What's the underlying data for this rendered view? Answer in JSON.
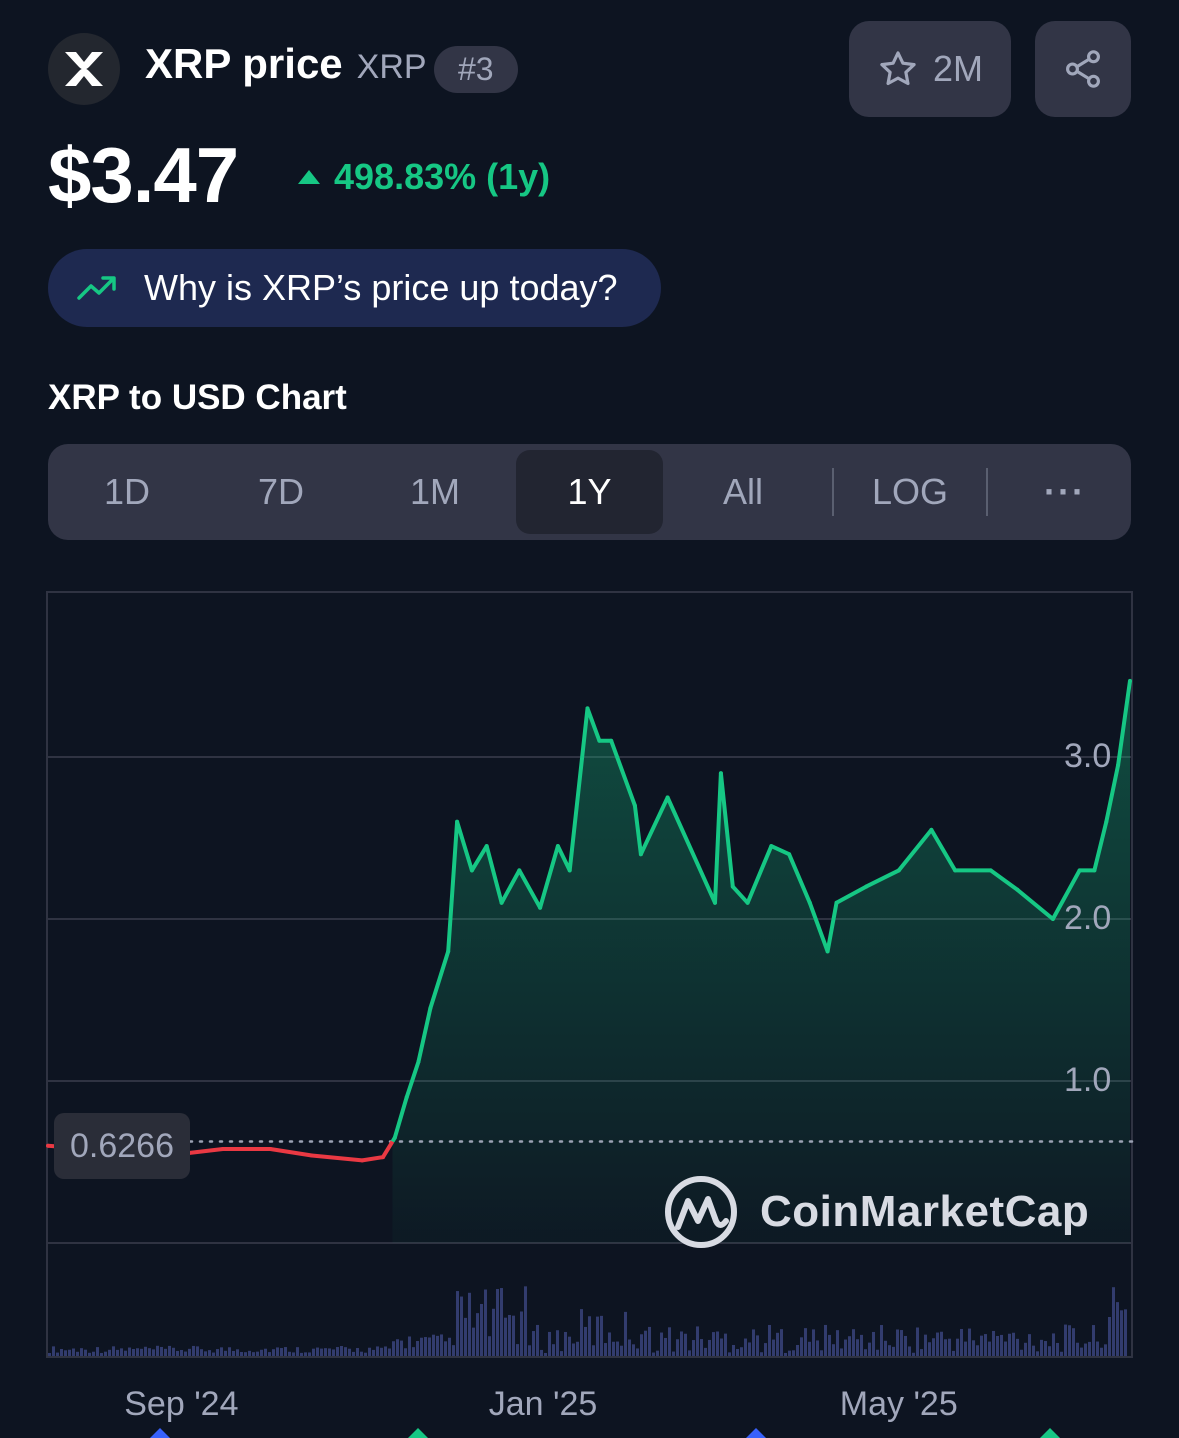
{
  "header": {
    "name": "XRP price",
    "symbol": "XRP",
    "rank": "#3",
    "watchlist_count": "2M",
    "price": "$3.47",
    "change": "498.83% (1y)",
    "why_prompt": "Why is XRP’s price up today?"
  },
  "chart_section": {
    "title": "XRP to USD Chart",
    "tabs": [
      {
        "label": "1D"
      },
      {
        "label": "7D"
      },
      {
        "label": "1M"
      },
      {
        "label": "1Y",
        "active": true
      },
      {
        "label": "All"
      },
      {
        "label": "LOG"
      },
      {
        "label": "···"
      }
    ],
    "watermark": "CoinMarketCap"
  },
  "colors": {
    "up": "#16c784",
    "down": "#ea3943",
    "background": "#0d1421",
    "panel": "#323546"
  },
  "icons": [
    "xrp-logo-icon",
    "star-icon",
    "share-icon",
    "trending-up-icon",
    "coinmarketcap-logo-icon"
  ],
  "chart_data": {
    "type": "line",
    "reference_value": 0.6266,
    "reference_label": "0.6266",
    "ylim": [
      0,
      3.6
    ],
    "y_ticks": [
      1.0,
      2.0,
      3.0
    ],
    "y_tick_labels": [
      "1.0",
      "2.0",
      "3.0"
    ],
    "x_tick_labels": [
      "Sep '24",
      "Jan '25",
      "May '25"
    ],
    "x_tick_dates": [
      "2024-09-01",
      "2025-01-01",
      "2025-05-01"
    ],
    "x_range": [
      "2024-07-18",
      "2025-07-18"
    ],
    "grid": true,
    "series": [
      {
        "x": [
          "2024-07-18",
          "2024-08-01",
          "2024-08-15",
          "2024-09-01",
          "2024-09-15",
          "2024-10-01",
          "2024-10-15",
          "2024-11-01",
          "2024-11-08",
          "2024-11-12",
          "2024-11-16",
          "2024-11-20",
          "2024-11-24",
          "2024-11-30",
          "2024-12-03",
          "2024-12-08",
          "2024-12-13",
          "2024-12-18",
          "2024-12-24",
          "2024-12-31",
          "2025-01-06",
          "2025-01-10",
          "2025-01-16",
          "2025-01-20",
          "2025-01-24",
          "2025-02-01",
          "2025-02-03",
          "2025-02-12",
          "2025-02-28",
          "2025-03-02",
          "2025-03-06",
          "2025-03-11",
          "2025-03-19",
          "2025-03-25",
          "2025-04-01",
          "2025-04-07",
          "2025-04-10",
          "2025-04-20",
          "2025-05-01",
          "2025-05-12",
          "2025-05-20",
          "2025-06-01",
          "2025-06-10",
          "2025-06-22",
          "2025-07-01",
          "2025-07-06",
          "2025-07-10",
          "2025-07-14",
          "2025-07-18"
        ],
        "values": [
          0.6,
          0.58,
          0.57,
          0.55,
          0.58,
          0.58,
          0.54,
          0.51,
          0.53,
          0.65,
          0.9,
          1.12,
          1.45,
          1.8,
          2.6,
          2.3,
          2.45,
          2.1,
          2.3,
          2.07,
          2.45,
          2.3,
          3.3,
          3.1,
          3.1,
          2.7,
          2.4,
          2.75,
          2.1,
          2.9,
          2.2,
          2.1,
          2.45,
          2.4,
          2.1,
          1.8,
          2.1,
          2.2,
          2.3,
          2.55,
          2.3,
          2.3,
          2.18,
          2.0,
          2.3,
          2.3,
          2.6,
          2.95,
          3.47
        ]
      }
    ]
  }
}
